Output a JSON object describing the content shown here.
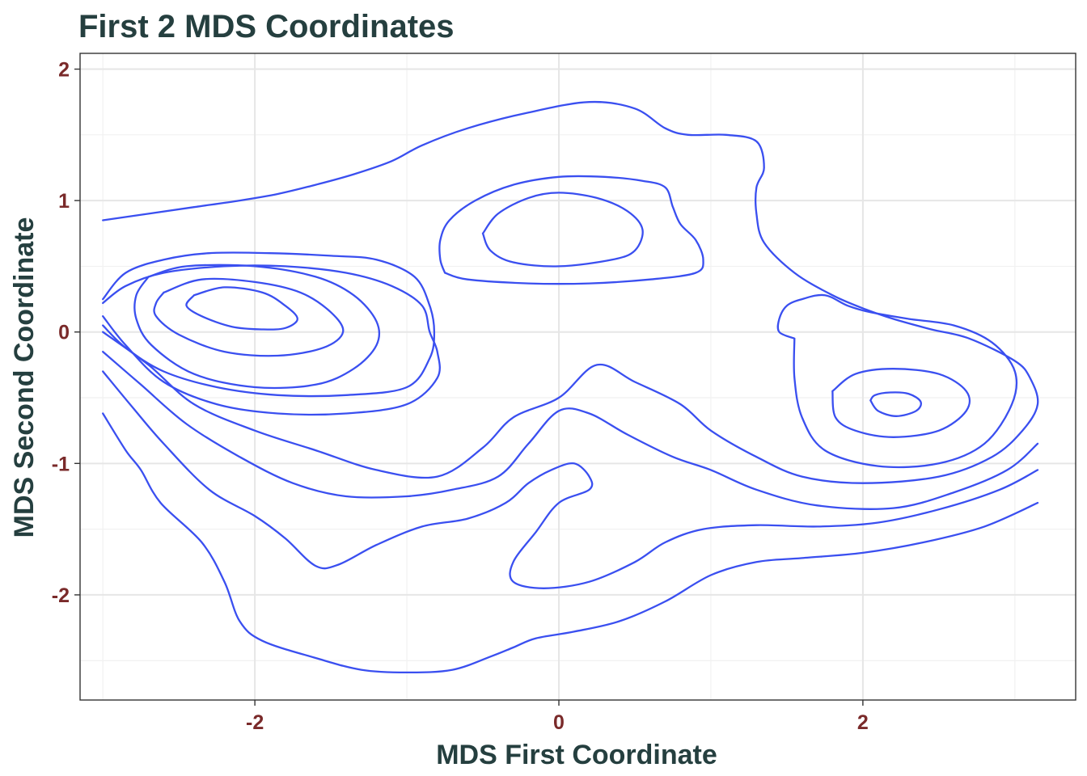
{
  "chart_data": {
    "type": "contour",
    "title": "First 2 MDS Coordinates",
    "xlabel": "MDS First Coordinate",
    "ylabel": "MDS Second Coordinate",
    "xlim": [
      -3.15,
      3.4
    ],
    "ylim": [
      -2.8,
      2.12
    ],
    "x_ticks": [
      -2,
      0,
      2
    ],
    "x_tick_labels": [
      "-2",
      "0",
      "2"
    ],
    "y_ticks": [
      -2,
      -1,
      0,
      1,
      2
    ],
    "y_tick_labels": [
      "-2",
      "-1",
      "0",
      "1",
      "2"
    ],
    "grid": true,
    "line_color": "#3a4ff0",
    "density_peaks": [
      {
        "x": -2.1,
        "y": 0.2
      },
      {
        "x": 0.0,
        "y": 0.72
      },
      {
        "x": 2.25,
        "y": -0.55
      },
      {
        "x": 0.1,
        "y": -1.55
      }
    ],
    "contours": [
      [
        [
          -3.0,
          -0.62
        ],
        [
          -2.85,
          -0.9
        ],
        [
          -2.75,
          -1.05
        ],
        [
          -2.62,
          -1.3
        ],
        [
          -2.35,
          -1.6
        ],
        [
          -2.2,
          -1.9
        ],
        [
          -2.1,
          -2.2
        ],
        [
          -1.95,
          -2.35
        ],
        [
          -1.6,
          -2.48
        ],
        [
          -1.3,
          -2.57
        ],
        [
          -1.0,
          -2.59
        ],
        [
          -0.7,
          -2.57
        ],
        [
          -0.45,
          -2.47
        ],
        [
          -0.3,
          -2.4
        ],
        [
          -0.15,
          -2.33
        ],
        [
          0.1,
          -2.28
        ],
        [
          0.4,
          -2.2
        ],
        [
          0.7,
          -2.05
        ],
        [
          1.0,
          -1.85
        ],
        [
          1.3,
          -1.75
        ],
        [
          1.6,
          -1.72
        ],
        [
          2.0,
          -1.68
        ],
        [
          2.4,
          -1.6
        ],
        [
          2.8,
          -1.48
        ],
        [
          3.15,
          -1.3
        ]
      ],
      [
        [
          -3.0,
          -0.3
        ],
        [
          -2.8,
          -0.58
        ],
        [
          -2.6,
          -0.85
        ],
        [
          -2.3,
          -1.2
        ],
        [
          -2.0,
          -1.4
        ],
        [
          -1.8,
          -1.57
        ],
        [
          -1.6,
          -1.78
        ],
        [
          -1.45,
          -1.77
        ],
        [
          -1.2,
          -1.62
        ],
        [
          -0.9,
          -1.48
        ],
        [
          -0.6,
          -1.42
        ],
        [
          -0.35,
          -1.3
        ],
        [
          -0.2,
          -1.15
        ],
        [
          -0.05,
          -1.05
        ],
        [
          0.1,
          -1.0
        ],
        [
          0.2,
          -1.1
        ],
        [
          0.2,
          -1.2
        ],
        [
          0.0,
          -1.3
        ],
        [
          -0.15,
          -1.52
        ],
        [
          -0.3,
          -1.75
        ],
        [
          -0.3,
          -1.9
        ],
        [
          -0.1,
          -1.95
        ],
        [
          0.2,
          -1.9
        ],
        [
          0.5,
          -1.75
        ],
        [
          0.7,
          -1.6
        ],
        [
          0.95,
          -1.5
        ],
        [
          1.3,
          -1.47
        ],
        [
          1.7,
          -1.48
        ],
        [
          2.1,
          -1.45
        ],
        [
          2.5,
          -1.35
        ],
        [
          2.9,
          -1.2
        ],
        [
          3.15,
          -1.05
        ]
      ],
      [
        [
          -3.0,
          -0.15
        ],
        [
          -2.75,
          -0.4
        ],
        [
          -2.45,
          -0.7
        ],
        [
          -2.1,
          -0.95
        ],
        [
          -1.75,
          -1.15
        ],
        [
          -1.4,
          -1.25
        ],
        [
          -1.0,
          -1.25
        ],
        [
          -0.7,
          -1.2
        ],
        [
          -0.4,
          -1.1
        ],
        [
          -0.2,
          -0.85
        ],
        [
          0.0,
          -0.6
        ],
        [
          0.2,
          -0.62
        ],
        [
          0.45,
          -0.78
        ],
        [
          0.75,
          -0.95
        ],
        [
          1.0,
          -1.05
        ],
        [
          1.3,
          -1.2
        ],
        [
          1.7,
          -1.32
        ],
        [
          2.2,
          -1.34
        ],
        [
          2.6,
          -1.22
        ],
        [
          2.95,
          -1.05
        ],
        [
          3.15,
          -0.85
        ]
      ],
      [
        [
          -3.0,
          0.0
        ],
        [
          -2.7,
          -0.25
        ],
        [
          -2.4,
          -0.55
        ],
        [
          -2.0,
          -0.75
        ],
        [
          -1.6,
          -0.9
        ],
        [
          -1.2,
          -1.05
        ],
        [
          -0.8,
          -1.1
        ],
        [
          -0.5,
          -0.88
        ],
        [
          -0.3,
          -0.65
        ],
        [
          0.0,
          -0.5
        ],
        [
          0.25,
          -0.25
        ],
        [
          0.5,
          -0.38
        ],
        [
          0.8,
          -0.55
        ],
        [
          1.0,
          -0.75
        ],
        [
          1.3,
          -0.95
        ],
        [
          1.6,
          -1.1
        ],
        [
          2.0,
          -1.15
        ],
        [
          2.5,
          -1.1
        ],
        [
          2.85,
          -0.95
        ],
        [
          3.05,
          -0.75
        ],
        [
          3.15,
          -0.55
        ],
        [
          3.1,
          -0.35
        ],
        [
          3.0,
          -0.22
        ],
        [
          2.7,
          -0.05
        ],
        [
          2.45,
          0.02
        ],
        [
          2.2,
          0.1
        ],
        [
          2.0,
          0.18
        ],
        [
          1.8,
          0.28
        ],
        [
          1.55,
          0.45
        ],
        [
          1.35,
          0.68
        ],
        [
          1.3,
          0.9
        ],
        [
          1.3,
          1.1
        ],
        [
          1.35,
          1.25
        ],
        [
          1.3,
          1.45
        ],
        [
          1.1,
          1.5
        ],
        [
          0.85,
          1.5
        ],
        [
          0.7,
          1.55
        ],
        [
          0.5,
          1.7
        ],
        [
          0.2,
          1.75
        ],
        [
          -0.2,
          1.67
        ],
        [
          -0.6,
          1.55
        ],
        [
          -0.9,
          1.42
        ],
        [
          -1.1,
          1.3
        ],
        [
          -1.35,
          1.2
        ],
        [
          -1.6,
          1.12
        ],
        [
          -1.85,
          1.05
        ],
        [
          -2.1,
          1.0
        ],
        [
          -2.4,
          0.95
        ],
        [
          -2.7,
          0.9
        ],
        [
          -3.0,
          0.85
        ]
      ],
      [
        [
          -3.0,
          0.12
        ],
        [
          -2.85,
          -0.1
        ],
        [
          -2.6,
          -0.38
        ],
        [
          -2.25,
          -0.55
        ],
        [
          -1.85,
          -0.62
        ],
        [
          -1.4,
          -0.62
        ],
        [
          -1.0,
          -0.55
        ],
        [
          -0.8,
          -0.35
        ],
        [
          -0.8,
          -0.15
        ],
        [
          -0.85,
          0.0
        ],
        [
          -0.9,
          0.2
        ],
        [
          -1.1,
          0.35
        ],
        [
          -1.4,
          0.45
        ],
        [
          -1.8,
          0.5
        ],
        [
          -2.2,
          0.5
        ],
        [
          -2.6,
          0.45
        ],
        [
          -2.85,
          0.35
        ],
        [
          -3.0,
          0.22
        ]
      ],
      [
        [
          -3.0,
          0.25
        ],
        [
          -2.85,
          0.45
        ],
        [
          -2.6,
          0.55
        ],
        [
          -2.3,
          0.6
        ],
        [
          -1.9,
          0.6
        ],
        [
          -1.5,
          0.58
        ],
        [
          -1.2,
          0.55
        ],
        [
          -0.95,
          0.42
        ],
        [
          -0.85,
          0.2
        ],
        [
          -0.82,
          0.0
        ],
        [
          -0.85,
          -0.2
        ],
        [
          -1.0,
          -0.42
        ],
        [
          -1.4,
          -0.48
        ],
        [
          -1.85,
          -0.48
        ],
        [
          -2.25,
          -0.42
        ],
        [
          -2.6,
          -0.3
        ],
        [
          -2.85,
          -0.12
        ],
        [
          -3.0,
          0.05
        ]
      ],
      [
        [
          -2.7,
          0.42
        ],
        [
          -2.45,
          0.5
        ],
        [
          -2.0,
          0.5
        ],
        [
          -1.6,
          0.42
        ],
        [
          -1.35,
          0.28
        ],
        [
          -1.2,
          0.08
        ],
        [
          -1.2,
          -0.1
        ],
        [
          -1.35,
          -0.28
        ],
        [
          -1.6,
          -0.4
        ],
        [
          -2.0,
          -0.42
        ],
        [
          -2.4,
          -0.32
        ],
        [
          -2.68,
          -0.1
        ],
        [
          -2.78,
          0.1
        ],
        [
          -2.78,
          0.28
        ],
        [
          -2.7,
          0.42
        ]
      ],
      [
        [
          -2.6,
          0.3
        ],
        [
          -2.35,
          0.4
        ],
        [
          -2.0,
          0.38
        ],
        [
          -1.7,
          0.3
        ],
        [
          -1.5,
          0.15
        ],
        [
          -1.42,
          0.0
        ],
        [
          -1.55,
          -0.12
        ],
        [
          -1.85,
          -0.18
        ],
        [
          -2.2,
          -0.15
        ],
        [
          -2.5,
          -0.02
        ],
        [
          -2.65,
          0.12
        ],
        [
          -2.65,
          0.22
        ],
        [
          -2.6,
          0.3
        ]
      ],
      [
        [
          -2.4,
          0.28
        ],
        [
          -2.2,
          0.34
        ],
        [
          -1.95,
          0.3
        ],
        [
          -1.8,
          0.2
        ],
        [
          -1.72,
          0.1
        ],
        [
          -1.8,
          0.03
        ],
        [
          -1.95,
          0.02
        ],
        [
          -2.15,
          0.04
        ],
        [
          -2.35,
          0.12
        ],
        [
          -2.45,
          0.2
        ],
        [
          -2.4,
          0.28
        ]
      ],
      [
        [
          -0.75,
          0.45
        ],
        [
          -0.6,
          0.4
        ],
        [
          -0.2,
          0.37
        ],
        [
          0.2,
          0.37
        ],
        [
          0.6,
          0.4
        ],
        [
          0.9,
          0.45
        ],
        [
          0.95,
          0.55
        ],
        [
          0.9,
          0.7
        ],
        [
          0.8,
          0.82
        ],
        [
          0.75,
          0.95
        ],
        [
          0.7,
          1.1
        ],
        [
          0.55,
          1.15
        ],
        [
          0.3,
          1.18
        ],
        [
          0.0,
          1.18
        ],
        [
          -0.3,
          1.12
        ],
        [
          -0.55,
          1.0
        ],
        [
          -0.72,
          0.85
        ],
        [
          -0.78,
          0.7
        ],
        [
          -0.78,
          0.55
        ],
        [
          -0.75,
          0.45
        ]
      ],
      [
        [
          -0.5,
          0.75
        ],
        [
          -0.4,
          0.9
        ],
        [
          -0.2,
          1.02
        ],
        [
          0.0,
          1.06
        ],
        [
          0.25,
          1.02
        ],
        [
          0.45,
          0.92
        ],
        [
          0.55,
          0.78
        ],
        [
          0.5,
          0.62
        ],
        [
          0.35,
          0.55
        ],
        [
          0.0,
          0.5
        ],
        [
          -0.3,
          0.53
        ],
        [
          -0.45,
          0.62
        ],
        [
          -0.5,
          0.75
        ]
      ],
      [
        [
          1.55,
          -0.05
        ],
        [
          1.45,
          0.0
        ],
        [
          1.45,
          0.1
        ],
        [
          1.5,
          0.2
        ],
        [
          1.6,
          0.25
        ],
        [
          1.75,
          0.28
        ],
        [
          1.9,
          0.2
        ],
        [
          2.05,
          0.15
        ],
        [
          2.3,
          0.1
        ],
        [
          2.6,
          0.05
        ],
        [
          2.85,
          -0.08
        ],
        [
          3.0,
          -0.3
        ],
        [
          2.98,
          -0.55
        ],
        [
          2.8,
          -0.85
        ],
        [
          2.5,
          -1.0
        ],
        [
          2.1,
          -1.02
        ],
        [
          1.75,
          -0.9
        ],
        [
          1.6,
          -0.65
        ],
        [
          1.55,
          -0.35
        ],
        [
          1.55,
          -0.05
        ]
      ],
      [
        [
          1.8,
          -0.45
        ],
        [
          1.82,
          -0.65
        ],
        [
          1.95,
          -0.75
        ],
        [
          2.2,
          -0.8
        ],
        [
          2.5,
          -0.75
        ],
        [
          2.68,
          -0.6
        ],
        [
          2.68,
          -0.45
        ],
        [
          2.5,
          -0.32
        ],
        [
          2.2,
          -0.28
        ],
        [
          1.95,
          -0.32
        ],
        [
          1.8,
          -0.45
        ]
      ],
      [
        [
          2.05,
          -0.52
        ],
        [
          2.1,
          -0.6
        ],
        [
          2.22,
          -0.64
        ],
        [
          2.35,
          -0.6
        ],
        [
          2.38,
          -0.53
        ],
        [
          2.3,
          -0.47
        ],
        [
          2.18,
          -0.46
        ],
        [
          2.08,
          -0.48
        ],
        [
          2.05,
          -0.52
        ]
      ]
    ]
  }
}
